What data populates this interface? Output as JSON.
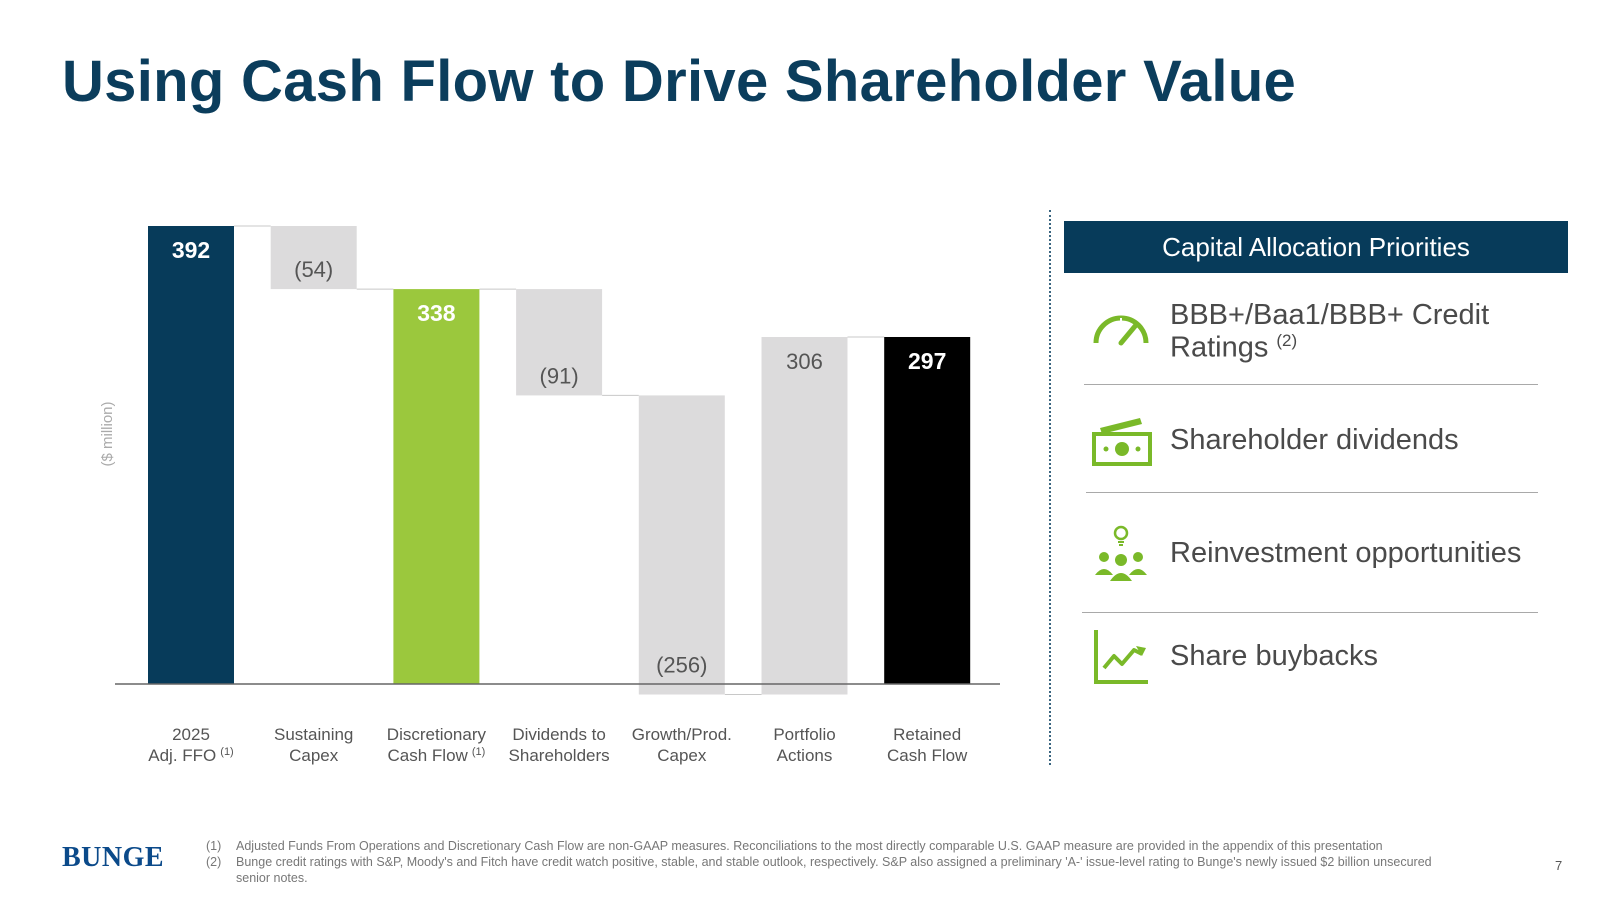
{
  "slide": {
    "title": "Using Cash Flow to Drive Shareholder Value",
    "page_number": "7",
    "logo_text": "BUNGE"
  },
  "chart_data": {
    "type": "waterfall",
    "y_axis_label": "($ million)",
    "ylim": [
      0,
      392
    ],
    "bars": [
      {
        "category_lines": [
          "2025",
          "Adj. FFO"
        ],
        "footnote": "(1)",
        "value": 392,
        "start": 0,
        "end": 392,
        "label": "392",
        "kind": "total",
        "color": "#073b5a"
      },
      {
        "category_lines": [
          "Sustaining",
          "Capex"
        ],
        "footnote": "",
        "value": -54,
        "start": 392,
        "end": 338,
        "label": "(54)",
        "kind": "delta",
        "color": "#dcdbdc"
      },
      {
        "category_lines": [
          "Discretionary",
          "Cash Flow"
        ],
        "footnote": "(1)",
        "value": 338,
        "start": 0,
        "end": 338,
        "label": "338",
        "kind": "subtotal",
        "color": "#9bc83d"
      },
      {
        "category_lines": [
          "Dividends to",
          "Shareholders"
        ],
        "footnote": "",
        "value": -91,
        "start": 338,
        "end": 247,
        "label": "(91)",
        "kind": "delta",
        "color": "#dcdbdc"
      },
      {
        "category_lines": [
          "Growth/Prod.",
          "Capex"
        ],
        "footnote": "",
        "value": -256,
        "start": 247,
        "end": -9,
        "label": "(256)",
        "kind": "delta",
        "color": "#dcdbdc"
      },
      {
        "category_lines": [
          "Portfolio",
          "Actions"
        ],
        "footnote": "",
        "value": 306,
        "start": -9,
        "end": 297,
        "label": "306",
        "kind": "delta",
        "color": "#dcdbdc"
      },
      {
        "category_lines": [
          "Retained",
          "Cash Flow"
        ],
        "footnote": "",
        "value": 297,
        "start": 0,
        "end": 297,
        "label": "297",
        "kind": "total",
        "color": "#000000"
      }
    ]
  },
  "priorities": {
    "header": "Capital Allocation Priorities",
    "items": [
      {
        "icon": "speedometer-icon",
        "label": "BBB+/Baa1/BBB+ Credit Ratings",
        "footnote": "(2)"
      },
      {
        "icon": "money-icon",
        "label": "Shareholder dividends",
        "footnote": ""
      },
      {
        "icon": "people-idea-icon",
        "label": "Reinvestment opportunities",
        "footnote": ""
      },
      {
        "icon": "growth-chart-icon",
        "label": "Share buybacks",
        "footnote": ""
      }
    ]
  },
  "footnotes": [
    {
      "num": "(1)",
      "text": "Adjusted Funds From Operations and Discretionary Cash Flow are non-GAAP measures. Reconciliations to the most directly comparable U.S. GAAP measure are provided in the appendix of this presentation"
    },
    {
      "num": "(2)",
      "text": "Bunge credit ratings with S&P, Moody's and Fitch have credit watch positive, stable, and stable outlook, respectively. S&P also assigned a preliminary 'A-' issue-level rating to Bunge's newly issued $2 billion unsecured senior notes."
    }
  ],
  "colors": {
    "accent_navy": "#073b5a",
    "accent_green": "#9bc83d",
    "delta_gray": "#dcdbdc",
    "icon_green": "#7ab929"
  }
}
